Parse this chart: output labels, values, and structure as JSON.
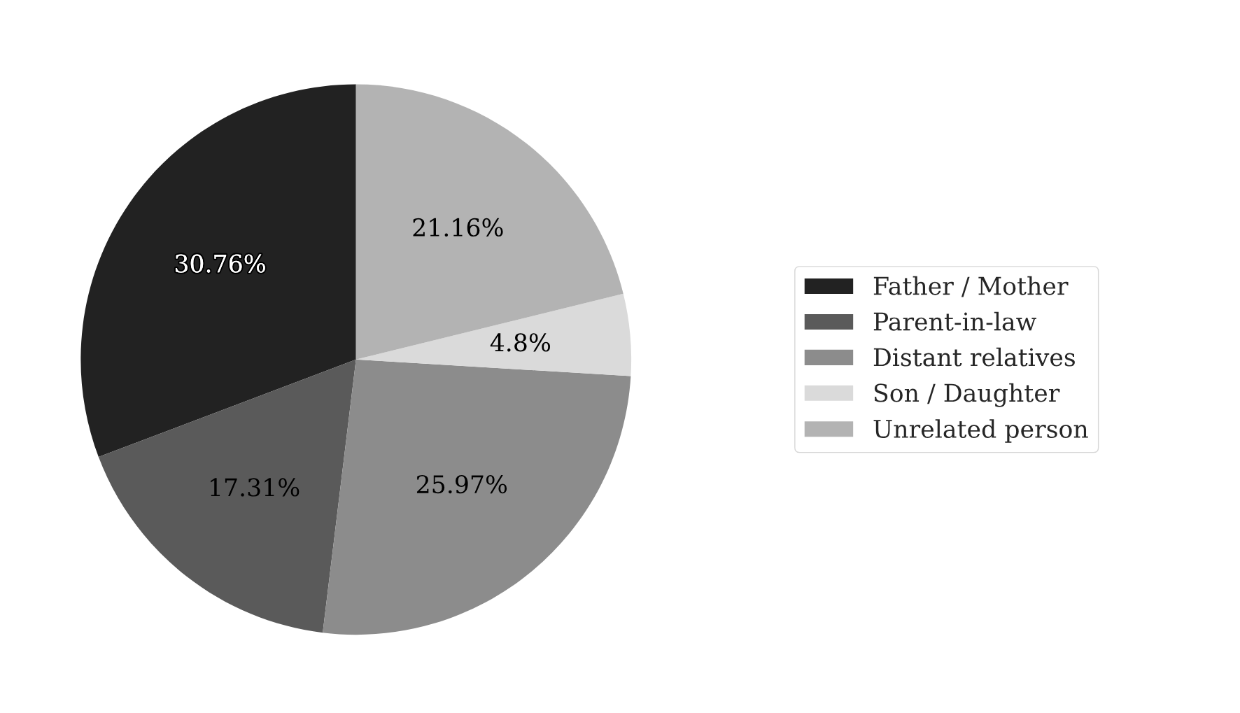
{
  "chart_data": {
    "type": "pie",
    "categories": [
      "Father / Mother",
      "Parent-in-law",
      "Distant relatives",
      "Son / Daughter",
      "Unrelated person"
    ],
    "values": [
      30.76,
      17.31,
      25.97,
      4.8,
      21.16
    ],
    "colors": [
      "#222222",
      "#5a5a5a",
      "#8c8c8c",
      "#dadada",
      "#b3b3b3"
    ],
    "value_labels": [
      "30.76%",
      "17.31%",
      "25.97%",
      "4.8%",
      "21.16%"
    ],
    "legend": "right"
  }
}
